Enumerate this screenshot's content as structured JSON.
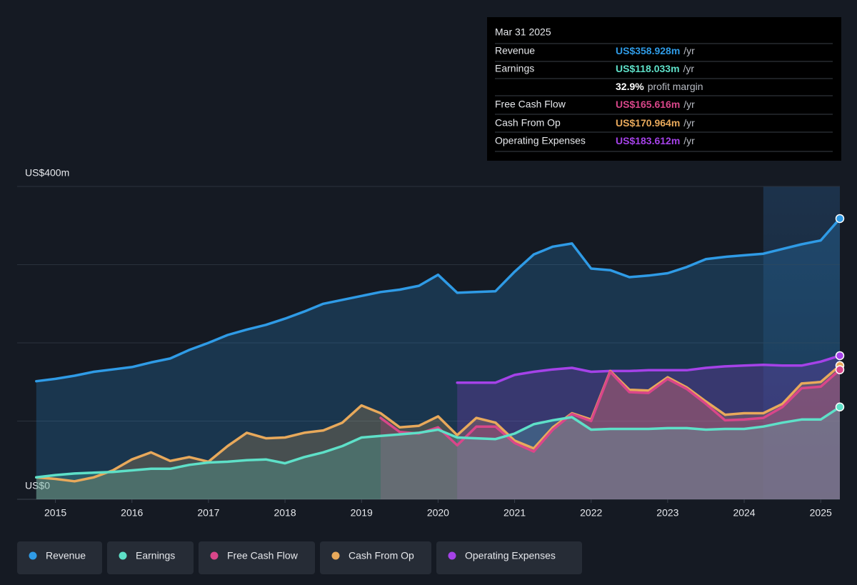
{
  "chart_data": {
    "type": "area",
    "xlim": [
      2014.5,
      2025.25
    ],
    "ylim": [
      0,
      400
    ],
    "yticks": [
      {
        "value": 0,
        "label": "US$0"
      },
      {
        "value": 400,
        "label": "US$400m"
      }
    ],
    "ygrid": [
      0,
      100,
      200,
      300,
      400
    ],
    "xticks": [
      2015,
      2016,
      2017,
      2018,
      2019,
      2020,
      2021,
      2022,
      2023,
      2024,
      2025
    ],
    "highlight_from": 2024.25,
    "series": [
      {
        "name": "Revenue",
        "color": "#2f9be6",
        "x": [
          2014.75,
          2015,
          2015.25,
          2015.5,
          2015.75,
          2016,
          2016.25,
          2016.5,
          2016.75,
          2017,
          2017.25,
          2017.5,
          2017.75,
          2018,
          2018.25,
          2018.5,
          2018.75,
          2019,
          2019.25,
          2019.5,
          2019.75,
          2020,
          2020.25,
          2020.5,
          2020.75,
          2021,
          2021.25,
          2021.5,
          2021.75,
          2022,
          2022.25,
          2022.5,
          2022.75,
          2023,
          2023.25,
          2023.5,
          2023.75,
          2024,
          2024.25,
          2024.5,
          2024.75,
          2025,
          2025.25
        ],
        "values": [
          151,
          154,
          158,
          163,
          166,
          169,
          175,
          180,
          191,
          200,
          210,
          217,
          223,
          231,
          240,
          250,
          255,
          260,
          265,
          268,
          273,
          287,
          264,
          265,
          266,
          291,
          313,
          323,
          327,
          295,
          293,
          284,
          286,
          289,
          297,
          307,
          310,
          312,
          314,
          320,
          326,
          331,
          358.928
        ]
      },
      {
        "name": "Earnings",
        "color": "#5ee0c8",
        "x": [
          2014.75,
          2015,
          2015.25,
          2015.5,
          2015.75,
          2016,
          2016.25,
          2016.5,
          2016.75,
          2017,
          2017.25,
          2017.5,
          2017.75,
          2018,
          2018.25,
          2018.5,
          2018.75,
          2019,
          2019.25,
          2019.5,
          2019.75,
          2020,
          2020.25,
          2020.5,
          2020.75,
          2021,
          2021.25,
          2021.5,
          2021.75,
          2022,
          2022.25,
          2022.5,
          2022.75,
          2023,
          2023.25,
          2023.5,
          2023.75,
          2024,
          2024.25,
          2024.5,
          2024.75,
          2025,
          2025.25
        ],
        "values": [
          28,
          31,
          33,
          34,
          35,
          37,
          39,
          39,
          44,
          47,
          48,
          50,
          51,
          46,
          54,
          60,
          68,
          79,
          81,
          83,
          85,
          89,
          79,
          78,
          77,
          84,
          96,
          101,
          105,
          89,
          90,
          90,
          90,
          91,
          91,
          89,
          90,
          90,
          93,
          98,
          102,
          102,
          118.033
        ]
      },
      {
        "name": "Free Cash Flow",
        "color": "#d9468a",
        "x": [
          2019.25,
          2019.5,
          2019.75,
          2020,
          2020.25,
          2020.5,
          2020.75,
          2021,
          2021.25,
          2021.5,
          2021.75,
          2022,
          2022.25,
          2022.5,
          2022.75,
          2023,
          2023.25,
          2023.5,
          2023.75,
          2024,
          2024.25,
          2024.5,
          2024.75,
          2025,
          2025.25
        ],
        "values": [
          104,
          86,
          84,
          92,
          69,
          93,
          93,
          72,
          61,
          89,
          109,
          100,
          163,
          137,
          136,
          154,
          141,
          122,
          101,
          102,
          104,
          118,
          142,
          144,
          165.616
        ]
      },
      {
        "name": "Cash From Op",
        "color": "#e8a95b",
        "x": [
          2014.75,
          2015,
          2015.25,
          2015.5,
          2015.75,
          2016,
          2016.25,
          2016.5,
          2016.75,
          2017,
          2017.25,
          2017.5,
          2017.75,
          2018,
          2018.25,
          2018.5,
          2018.75,
          2019,
          2019.25,
          2019.5,
          2019.75,
          2020,
          2020.25,
          2020.5,
          2020.75,
          2021,
          2021.25,
          2021.5,
          2021.75,
          2022,
          2022.25,
          2022.5,
          2022.75,
          2023,
          2023.25,
          2023.5,
          2023.75,
          2024,
          2024.25,
          2024.5,
          2024.75,
          2025,
          2025.25
        ],
        "values": [
          28,
          26,
          23,
          28,
          37,
          51,
          60,
          49,
          54,
          48,
          68,
          85,
          78,
          79,
          85,
          88,
          98,
          120,
          110,
          92,
          94,
          106,
          82,
          104,
          98,
          75,
          65,
          92,
          110,
          102,
          164,
          140,
          139,
          156,
          143,
          125,
          108,
          110,
          110,
          122,
          148,
          150,
          170.964
        ]
      },
      {
        "name": "Operating Expenses",
        "color": "#a542e8",
        "x": [
          2020.25,
          2020.5,
          2020.75,
          2021,
          2021.25,
          2021.5,
          2021.75,
          2022,
          2022.25,
          2022.5,
          2022.75,
          2023,
          2023.25,
          2023.5,
          2023.75,
          2024,
          2024.25,
          2024.5,
          2024.75,
          2025,
          2025.25
        ],
        "values": [
          149,
          149,
          149,
          159,
          163,
          166,
          168,
          163,
          164,
          164,
          165,
          165,
          165,
          168,
          170,
          171,
          172,
          171,
          171,
          176,
          183.612
        ]
      }
    ],
    "tooltip": {
      "date": "Mar 31 2025",
      "rows": [
        {
          "label": "Revenue",
          "value": "US$358.928m",
          "unit": "/yr"
        },
        {
          "label": "Earnings",
          "value": "US$118.033m",
          "unit": "/yr"
        },
        {
          "label": "Free Cash Flow",
          "value": "US$165.616m",
          "unit": "/yr"
        },
        {
          "label": "Cash From Op",
          "value": "US$170.964m",
          "unit": "/yr"
        },
        {
          "label": "Operating Expenses",
          "value": "US$183.612m",
          "unit": "/yr"
        }
      ],
      "margin": "32.9%",
      "margin_label": "profit margin"
    }
  }
}
